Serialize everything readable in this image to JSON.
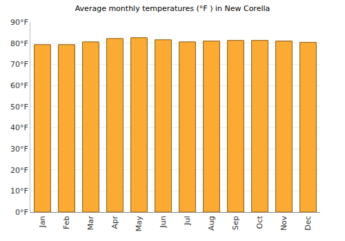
{
  "chart_data": {
    "type": "bar",
    "title": "Average monthly temperatures (°F ) in New Corella",
    "categories": [
      "Jan",
      "Feb",
      "Mar",
      "Apr",
      "May",
      "Jun",
      "Jul",
      "Aug",
      "Sep",
      "Oct",
      "Nov",
      "Dec"
    ],
    "values": [
      79.3,
      79.3,
      80.6,
      82.2,
      82.6,
      81.6,
      80.6,
      81.0,
      81.3,
      81.3,
      81.0,
      80.4
    ],
    "color": "#fbab33",
    "ylim": [
      0,
      90
    ],
    "yticks": [
      {
        "value": 0,
        "label": "0°F"
      },
      {
        "value": 10,
        "label": "10°F"
      },
      {
        "value": 20,
        "label": "20°F"
      },
      {
        "value": 30,
        "label": "30°F"
      },
      {
        "value": 40,
        "label": "40°F"
      },
      {
        "value": 50,
        "label": "50°F"
      },
      {
        "value": 60,
        "label": "60°F"
      },
      {
        "value": 70,
        "label": "70°F"
      },
      {
        "value": 80,
        "label": "80°F"
      },
      {
        "value": 90,
        "label": "90°F"
      }
    ],
    "grid": true
  }
}
